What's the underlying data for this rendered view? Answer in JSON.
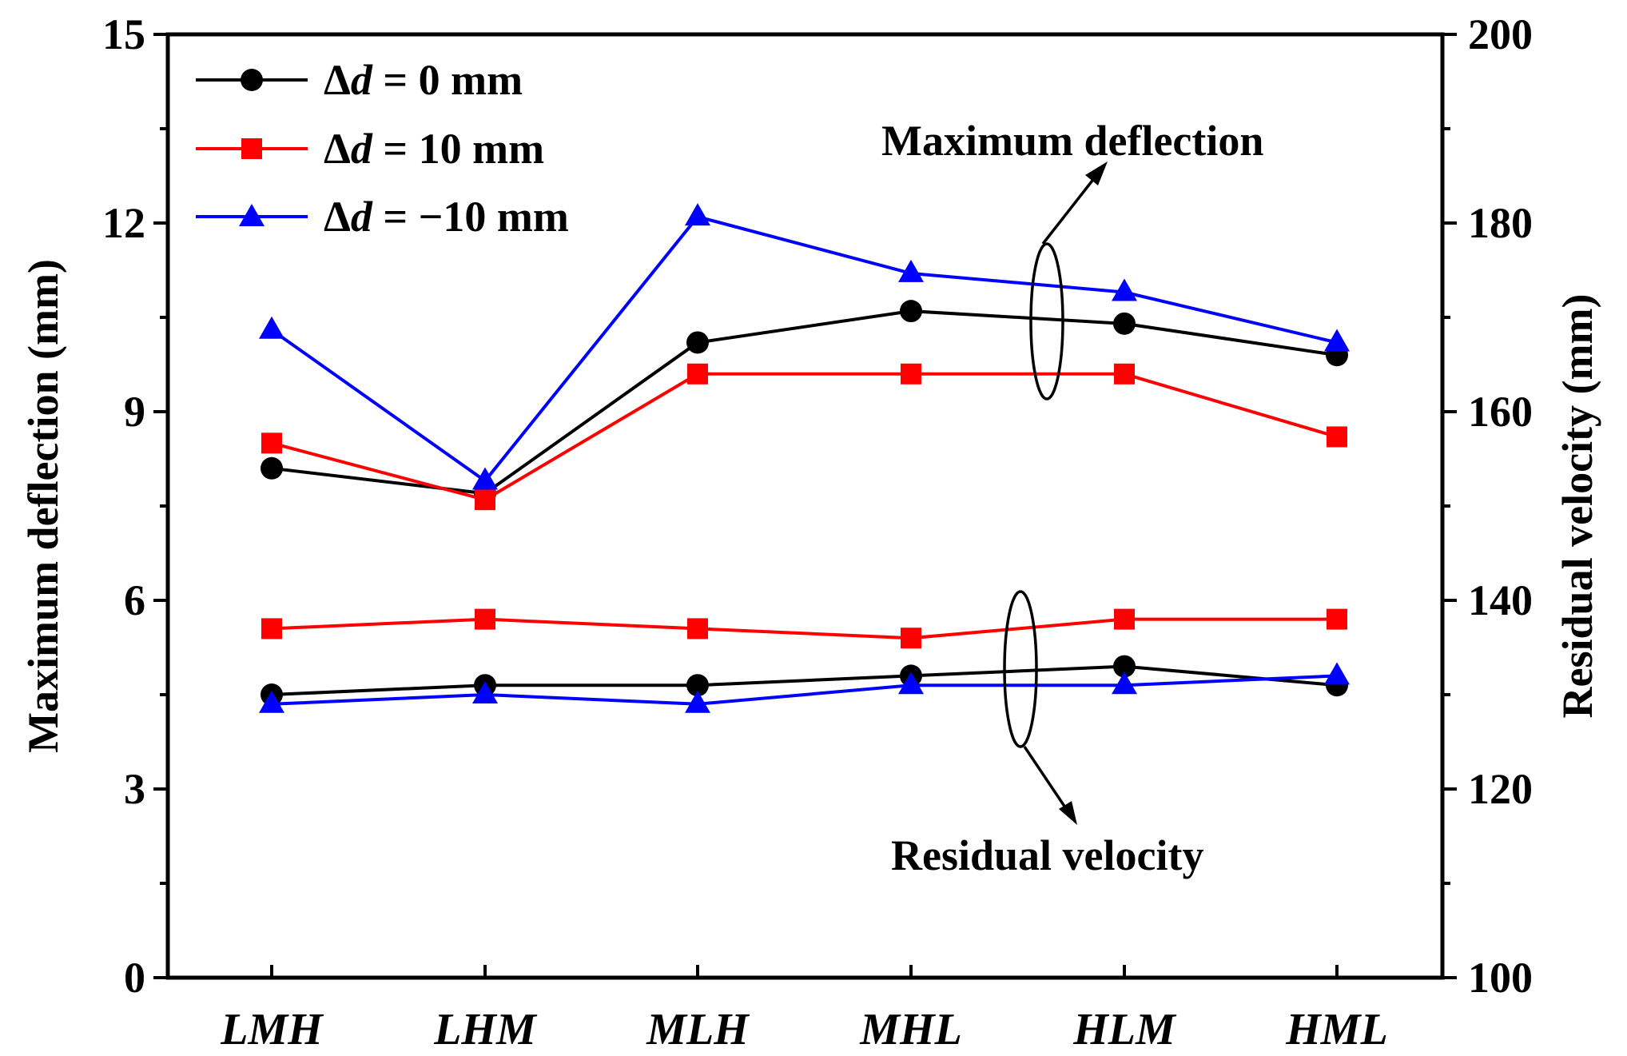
{
  "chart_data": {
    "type": "line",
    "categories": [
      "LMH",
      "LHM",
      "MLH",
      "MHL",
      "HLM",
      "HML"
    ],
    "y_left": {
      "label": "Maximum deflection (mm)",
      "range": [
        0,
        15
      ],
      "ticks": [
        0,
        3,
        6,
        9,
        12,
        15
      ],
      "tick_labels": [
        "0",
        "3",
        "6",
        "9",
        "12",
        "15"
      ]
    },
    "y_right": {
      "label": "Residual velocity (mm)",
      "range": [
        100,
        200
      ],
      "ticks": [
        100,
        120,
        140,
        160,
        180,
        200
      ],
      "tick_labels": [
        "100",
        "120",
        "140",
        "160",
        "180",
        "200"
      ]
    },
    "legend": {
      "position": "top-left",
      "entries": [
        {
          "prefix": "Δ",
          "var": "d",
          "suffix": " = 0 mm"
        },
        {
          "prefix": "Δ",
          "var": "d",
          "suffix": " = 10 mm"
        },
        {
          "prefix": "Δ",
          "var": "d",
          "suffix": " = −10 mm"
        }
      ]
    },
    "series": [
      {
        "name": "Δd = 0 mm (deflection)",
        "axis": "left",
        "color": "#000000",
        "marker": "circle",
        "values": [
          8.1,
          7.7,
          10.1,
          10.6,
          10.4,
          9.9
        ]
      },
      {
        "name": "Δd = 10 mm (deflection)",
        "axis": "left",
        "color": "#ff0000",
        "marker": "square",
        "values": [
          8.5,
          7.6,
          9.6,
          9.6,
          9.6,
          8.6
        ]
      },
      {
        "name": "Δd = −10 mm (deflection)",
        "axis": "left",
        "color": "#0000ff",
        "marker": "triangle",
        "values": [
          10.3,
          7.9,
          12.1,
          11.2,
          10.9,
          10.1
        ]
      },
      {
        "name": "Δd = 0 mm (velocity)",
        "axis": "right",
        "color": "#000000",
        "marker": "circle",
        "values": [
          130,
          131,
          131,
          132,
          133,
          131
        ]
      },
      {
        "name": "Δd = 10 mm (velocity)",
        "axis": "right",
        "color": "#ff0000",
        "marker": "square",
        "values": [
          137,
          138,
          137,
          136,
          138,
          138
        ]
      },
      {
        "name": "Δd = −10 mm (velocity)",
        "axis": "right",
        "color": "#0000ff",
        "marker": "triangle",
        "values": [
          129,
          130,
          129,
          131,
          131,
          132
        ]
      }
    ],
    "annotations": [
      {
        "text": "Maximum deflection"
      },
      {
        "text": "Residual velocity"
      }
    ]
  }
}
